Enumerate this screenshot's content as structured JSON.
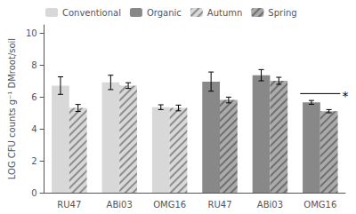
{
  "chart_data": {
    "type": "bar",
    "ylabel": "LOG CFU counts g⁻¹ DMroot/soil",
    "categories": [
      "RU47",
      "ABi03",
      "OMG16",
      "RU47",
      "ABi03",
      "OMG16"
    ],
    "series": [
      {
        "name": "Conventional",
        "color": "#d8d8d8",
        "values": [
          6.7,
          6.9,
          5.35,
          null,
          null,
          null
        ],
        "errors": [
          0.55,
          0.45,
          0.15,
          null,
          null,
          null
        ]
      },
      {
        "name": "Organic",
        "color": "#888888",
        "values": [
          null,
          null,
          null,
          6.95,
          7.35,
          5.65
        ],
        "errors": [
          null,
          null,
          null,
          0.6,
          0.35,
          0.12
        ]
      },
      {
        "name": "Autumn",
        "color": "#d8d8d8",
        "values": [
          5.3,
          6.7,
          5.3,
          null,
          null,
          null
        ],
        "errors": [
          0.22,
          0.18,
          0.18,
          null,
          null,
          null
        ]
      },
      {
        "name": "Spring",
        "color": "#aaaaaa",
        "values": [
          null,
          null,
          null,
          5.8,
          7.0,
          5.1
        ],
        "errors": [
          null,
          null,
          null,
          0.18,
          0.22,
          0.1
        ]
      }
    ],
    "annotations": [
      {
        "text": "*",
        "y": 6.2
      }
    ],
    "ylim": [
      0,
      10.5
    ],
    "yticks": [
      0,
      2,
      4,
      6,
      8,
      10
    ],
    "grid": false,
    "legend": "upper left"
  }
}
